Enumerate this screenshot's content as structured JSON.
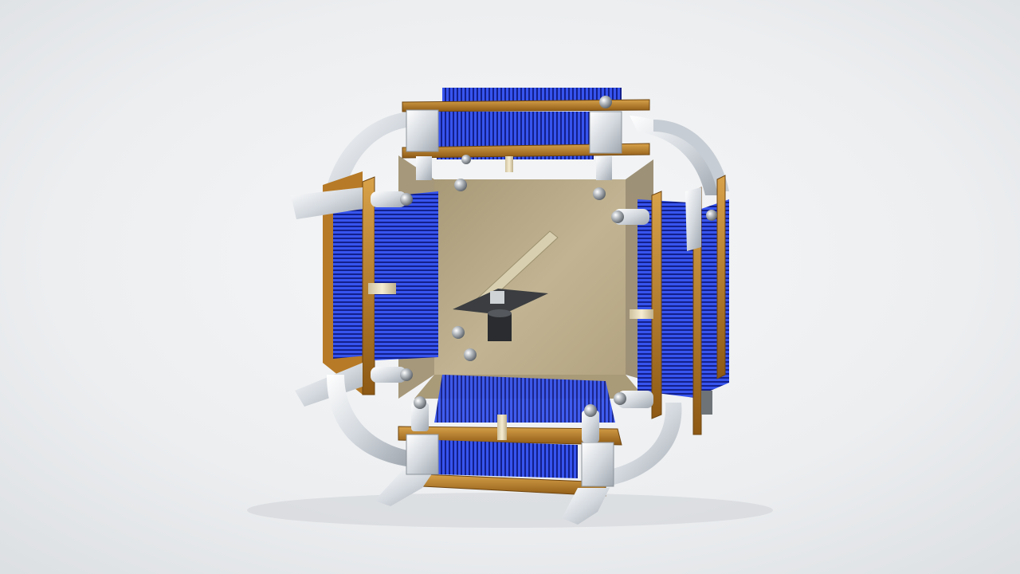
{
  "scene": {
    "subject": "cad-render-cube-assembly",
    "palette": {
      "background_light": "#f2f3f4",
      "background_mid": "#dfe1e3",
      "heatsink_fin": "#2a44d6",
      "heatsink_fin_dark": "#101c7a",
      "circuit_board": "#a66b1e",
      "circuit_board_edge": "#d39a3a",
      "bracket_metal": "#d9dee4",
      "interior_panel": "#b9a98a",
      "standoff": "#e9dcb8",
      "fastener": "#8e949a"
    }
  }
}
